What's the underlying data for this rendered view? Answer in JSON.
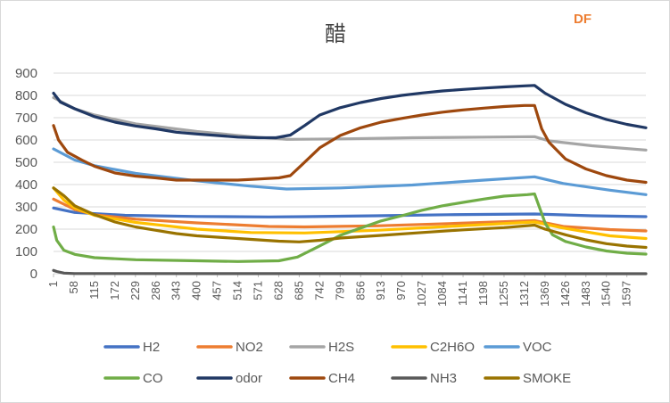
{
  "watermark": "DF",
  "chart_data": {
    "type": "line",
    "title": "醋",
    "xlabel": "",
    "ylabel": "",
    "ylim": [
      0,
      900
    ],
    "yticks": [
      0,
      100,
      200,
      300,
      400,
      500,
      600,
      700,
      800,
      900
    ],
    "xlim": [
      1,
      1650
    ],
    "xticks": [
      1,
      58,
      115,
      172,
      229,
      286,
      343,
      400,
      457,
      514,
      571,
      628,
      685,
      742,
      799,
      856,
      913,
      970,
      1027,
      1084,
      1141,
      1198,
      1255,
      1312,
      1369,
      1426,
      1483,
      1540,
      1597
    ],
    "grid": "horizontal",
    "legend_position": "bottom",
    "series": [
      {
        "name": "H2",
        "color": "#4472C4",
        "points": [
          [
            1,
            295
          ],
          [
            60,
            275
          ],
          [
            200,
            262
          ],
          [
            400,
            257
          ],
          [
            600,
            255
          ],
          [
            700,
            256
          ],
          [
            900,
            260
          ],
          [
            1100,
            265
          ],
          [
            1340,
            268
          ],
          [
            1500,
            260
          ],
          [
            1650,
            256
          ]
        ]
      },
      {
        "name": "NO2",
        "color": "#ED7D31",
        "points": [
          [
            1,
            335
          ],
          [
            60,
            288
          ],
          [
            115,
            265
          ],
          [
            230,
            245
          ],
          [
            400,
            228
          ],
          [
            600,
            212
          ],
          [
            700,
            210
          ],
          [
            900,
            215
          ],
          [
            1100,
            225
          ],
          [
            1340,
            238
          ],
          [
            1420,
            212
          ],
          [
            1550,
            198
          ],
          [
            1650,
            192
          ]
        ]
      },
      {
        "name": "H2S",
        "color": "#A5A5A5",
        "points": [
          [
            1,
            790
          ],
          [
            60,
            740
          ],
          [
            115,
            712
          ],
          [
            230,
            672
          ],
          [
            400,
            638
          ],
          [
            550,
            615
          ],
          [
            650,
            603
          ],
          [
            800,
            605
          ],
          [
            1000,
            610
          ],
          [
            1200,
            613
          ],
          [
            1340,
            615
          ],
          [
            1380,
            596
          ],
          [
            1500,
            574
          ],
          [
            1650,
            555
          ]
        ]
      },
      {
        "name": "C2H6O",
        "color": "#FFC000",
        "points": [
          [
            1,
            385
          ],
          [
            30,
            330
          ],
          [
            60,
            295
          ],
          [
            115,
            262
          ],
          [
            230,
            230
          ],
          [
            400,
            200
          ],
          [
            550,
            185
          ],
          [
            700,
            183
          ],
          [
            900,
            195
          ],
          [
            1100,
            212
          ],
          [
            1340,
            232
          ],
          [
            1420,
            205
          ],
          [
            1550,
            170
          ],
          [
            1650,
            158
          ]
        ]
      },
      {
        "name": "VOC",
        "color": "#5B9BD5",
        "points": [
          [
            1,
            560
          ],
          [
            60,
            510
          ],
          [
            115,
            485
          ],
          [
            230,
            450
          ],
          [
            400,
            417
          ],
          [
            550,
            393
          ],
          [
            650,
            380
          ],
          [
            800,
            385
          ],
          [
            1000,
            398
          ],
          [
            1200,
            420
          ],
          [
            1340,
            435
          ],
          [
            1420,
            405
          ],
          [
            1550,
            375
          ],
          [
            1650,
            355
          ]
        ]
      },
      {
        "name": "CO",
        "color": "#70AD47",
        "points": [
          [
            1,
            210
          ],
          [
            10,
            150
          ],
          [
            30,
            105
          ],
          [
            60,
            87
          ],
          [
            115,
            72
          ],
          [
            230,
            63
          ],
          [
            400,
            58
          ],
          [
            514,
            55
          ],
          [
            628,
            58
          ],
          [
            680,
            75
          ],
          [
            742,
            125
          ],
          [
            799,
            172
          ],
          [
            856,
            205
          ],
          [
            913,
            237
          ],
          [
            970,
            260
          ],
          [
            1027,
            285
          ],
          [
            1084,
            305
          ],
          [
            1141,
            320
          ],
          [
            1198,
            335
          ],
          [
            1255,
            348
          ],
          [
            1320,
            355
          ],
          [
            1340,
            358
          ],
          [
            1370,
            225
          ],
          [
            1390,
            175
          ],
          [
            1426,
            145
          ],
          [
            1483,
            120
          ],
          [
            1540,
            102
          ],
          [
            1597,
            92
          ],
          [
            1650,
            88
          ]
        ]
      },
      {
        "name": "odor",
        "color": "#203864",
        "points": [
          [
            1,
            810
          ],
          [
            20,
            770
          ],
          [
            60,
            740
          ],
          [
            115,
            705
          ],
          [
            172,
            680
          ],
          [
            229,
            663
          ],
          [
            286,
            650
          ],
          [
            343,
            635
          ],
          [
            400,
            627
          ],
          [
            457,
            620
          ],
          [
            514,
            613
          ],
          [
            571,
            610
          ],
          [
            620,
            610
          ],
          [
            660,
            622
          ],
          [
            700,
            665
          ],
          [
            742,
            712
          ],
          [
            799,
            745
          ],
          [
            856,
            768
          ],
          [
            913,
            786
          ],
          [
            970,
            800
          ],
          [
            1027,
            811
          ],
          [
            1084,
            820
          ],
          [
            1141,
            827
          ],
          [
            1198,
            833
          ],
          [
            1255,
            838
          ],
          [
            1312,
            843
          ],
          [
            1340,
            845
          ],
          [
            1369,
            810
          ],
          [
            1426,
            760
          ],
          [
            1483,
            722
          ],
          [
            1540,
            692
          ],
          [
            1597,
            670
          ],
          [
            1650,
            655
          ]
        ]
      },
      {
        "name": "CH4",
        "color": "#9E480E",
        "points": [
          [
            1,
            665
          ],
          [
            15,
            600
          ],
          [
            40,
            545
          ],
          [
            80,
            510
          ],
          [
            115,
            482
          ],
          [
            172,
            452
          ],
          [
            229,
            438
          ],
          [
            286,
            430
          ],
          [
            343,
            420
          ],
          [
            400,
            420
          ],
          [
            457,
            420
          ],
          [
            514,
            420
          ],
          [
            571,
            425
          ],
          [
            628,
            430
          ],
          [
            660,
            440
          ],
          [
            690,
            485
          ],
          [
            742,
            565
          ],
          [
            799,
            620
          ],
          [
            856,
            655
          ],
          [
            913,
            680
          ],
          [
            970,
            697
          ],
          [
            1027,
            712
          ],
          [
            1084,
            725
          ],
          [
            1141,
            735
          ],
          [
            1198,
            743
          ],
          [
            1255,
            750
          ],
          [
            1312,
            755
          ],
          [
            1340,
            755
          ],
          [
            1360,
            650
          ],
          [
            1380,
            590
          ],
          [
            1426,
            515
          ],
          [
            1483,
            470
          ],
          [
            1540,
            440
          ],
          [
            1597,
            420
          ],
          [
            1650,
            410
          ]
        ]
      },
      {
        "name": "NH3",
        "color": "#595959",
        "points": [
          [
            1,
            15
          ],
          [
            10,
            10
          ],
          [
            30,
            3
          ],
          [
            60,
            1
          ],
          [
            1650,
            0
          ]
        ]
      },
      {
        "name": "SMOKE",
        "color": "#997300",
        "points": [
          [
            1,
            385
          ],
          [
            30,
            350
          ],
          [
            60,
            305
          ],
          [
            115,
            265
          ],
          [
            172,
            232
          ],
          [
            229,
            210
          ],
          [
            286,
            195
          ],
          [
            343,
            180
          ],
          [
            400,
            170
          ],
          [
            514,
            158
          ],
          [
            571,
            152
          ],
          [
            628,
            146
          ],
          [
            685,
            143
          ],
          [
            742,
            150
          ],
          [
            799,
            160
          ],
          [
            913,
            172
          ],
          [
            1027,
            185
          ],
          [
            1141,
            197
          ],
          [
            1255,
            207
          ],
          [
            1340,
            218
          ],
          [
            1369,
            200
          ],
          [
            1426,
            175
          ],
          [
            1483,
            152
          ],
          [
            1540,
            135
          ],
          [
            1597,
            124
          ],
          [
            1650,
            118
          ]
        ]
      }
    ]
  }
}
